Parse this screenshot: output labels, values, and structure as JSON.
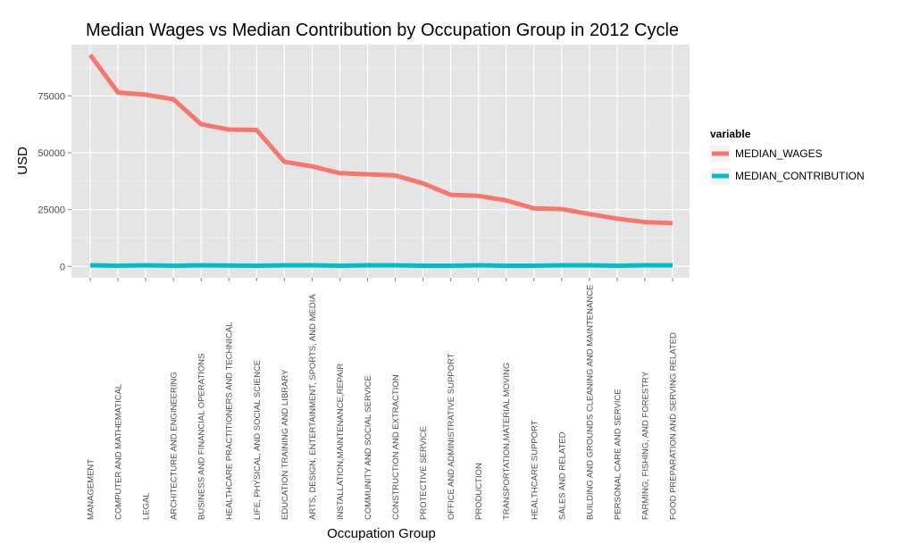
{
  "chart_data": {
    "type": "line",
    "title": "Median Wages vs Median Contribution by Occupation Group in 2012 Cycle",
    "xlabel": "Occupation Group",
    "ylabel": "USD",
    "ylim": [
      -5000,
      97500
    ],
    "yticks": [
      0,
      25000,
      50000,
      75000
    ],
    "ytick_labels": [
      "0",
      "25000",
      "50000",
      "75000"
    ],
    "grid": true,
    "legend": {
      "title": "variable",
      "position": "right"
    },
    "categories": [
      "MANAGEMENT",
      "COMPUTER AND MATHEMATICAL",
      "LEGAL",
      "ARCHITECTURE AND ENGINEERING",
      "BUSINESS AND FINANCIAL OPERATIONS",
      "HEALTHCARE PRACTITIONERS AND TECHNICAL",
      "LIFE, PHYSICAL, AND SOCIAL SCIENCE",
      "EDUCATION TRAINING AND LIBRARY",
      "ARTS, DESIGN, ENTERTAINMENT, SPORTS, AND MEDIA",
      "INSTALLATION,MAINTENANCE,REPAIR",
      "COMMUNITY AND SOCIAL SERVICE",
      "CONSTRUCTION AND EXTRACTION",
      "PROTECTIVE SERVICE",
      "OFFICE AND ADMINISTRATIVE SUPPORT",
      "PRODUCTION",
      "TRANSPORTATION,MATERIAL MOVING",
      "HEALTHCARE SUPPORT",
      "SALES AND RELATED",
      "BUILDING AND GROUNDS CLEANING AND MAINTENANCE",
      "PERSONAL CARE AND SERVICE",
      "FARMING, FISHING, AND FORESTRY",
      "FOOD PREPARATION AND SERVING RELATED"
    ],
    "series": [
      {
        "name": "MEDIAN_WAGES",
        "color": "#f8766d",
        "values": [
          93000,
          76500,
          75500,
          73500,
          62500,
          60200,
          60000,
          46000,
          44000,
          41000,
          40500,
          40000,
          36500,
          31500,
          31000,
          29000,
          25500,
          25200,
          23000,
          21000,
          19500,
          19000
        ]
      },
      {
        "name": "MEDIAN_CONTRIBUTION",
        "color": "#00bfc4",
        "values": [
          500,
          300,
          500,
          300,
          500,
          400,
          300,
          500,
          500,
          300,
          500,
          500,
          300,
          300,
          500,
          300,
          300,
          500,
          500,
          300,
          500,
          500
        ]
      }
    ]
  }
}
